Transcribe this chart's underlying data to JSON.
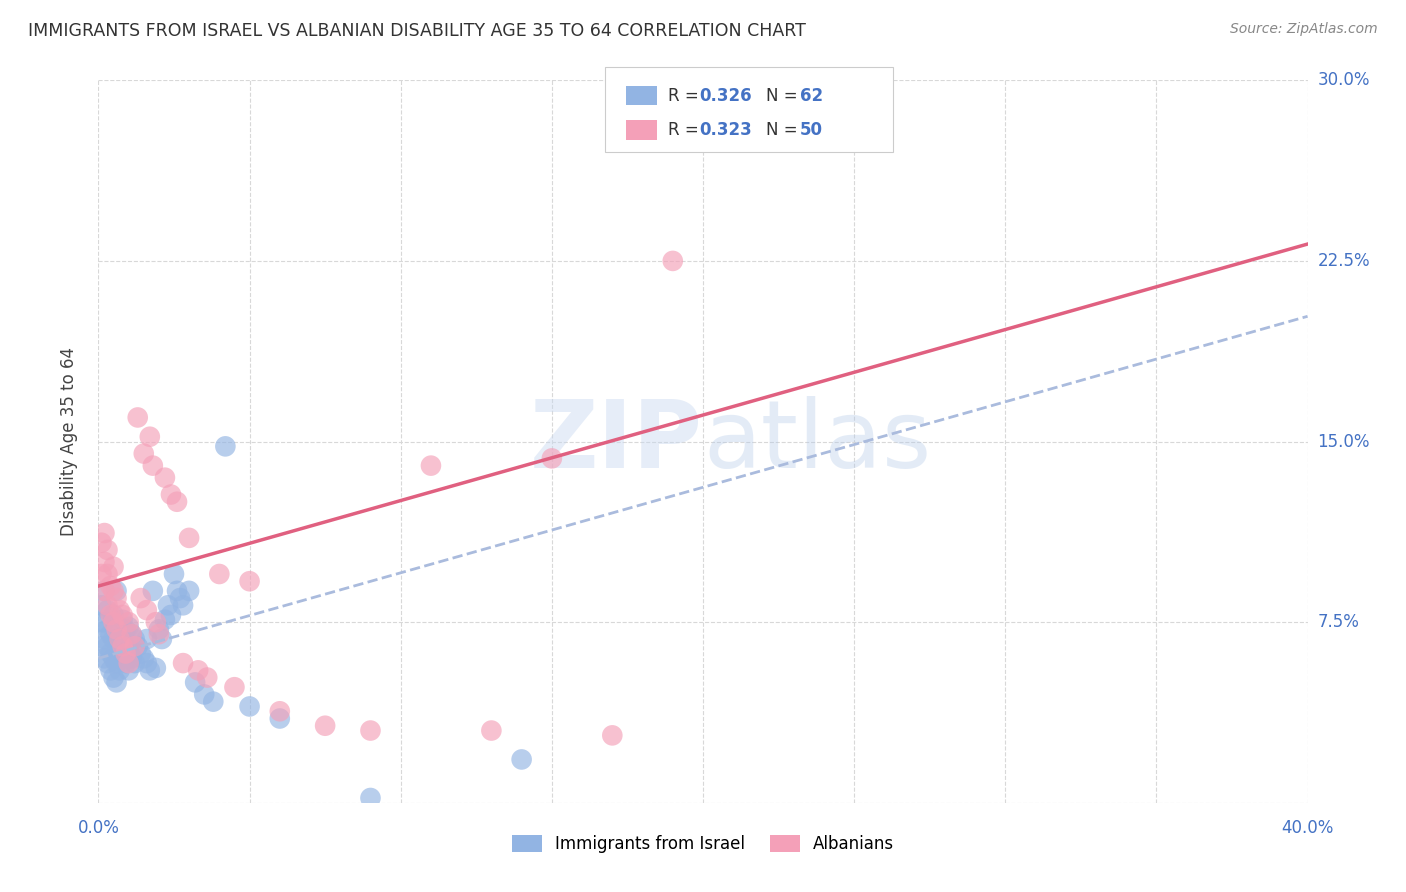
{
  "title": "IMMIGRANTS FROM ISRAEL VS ALBANIAN DISABILITY AGE 35 TO 64 CORRELATION CHART",
  "source": "Source: ZipAtlas.com",
  "ylabel": "Disability Age 35 to 64",
  "xlim": [
    0.0,
    0.4
  ],
  "ylim": [
    0.0,
    0.3
  ],
  "xticks": [
    0.0,
    0.05,
    0.1,
    0.15,
    0.2,
    0.25,
    0.3,
    0.35,
    0.4
  ],
  "yticks": [
    0.0,
    0.075,
    0.15,
    0.225,
    0.3
  ],
  "color_israel": "#92b4e3",
  "color_albanian": "#f4a0b8",
  "line_israel_color": "#aabbdd",
  "line_albanian_color": "#e06080",
  "legend_r1": "0.326",
  "legend_n1": "62",
  "legend_r2": "0.323",
  "legend_n2": "50",
  "watermark": "ZIPatlas",
  "israel_x": [
    0.001,
    0.001,
    0.001,
    0.002,
    0.002,
    0.002,
    0.002,
    0.003,
    0.003,
    0.003,
    0.003,
    0.004,
    0.004,
    0.004,
    0.005,
    0.005,
    0.005,
    0.005,
    0.006,
    0.006,
    0.006,
    0.007,
    0.007,
    0.007,
    0.008,
    0.008,
    0.008,
    0.009,
    0.009,
    0.01,
    0.01,
    0.01,
    0.011,
    0.011,
    0.012,
    0.012,
    0.013,
    0.014,
    0.015,
    0.016,
    0.016,
    0.017,
    0.018,
    0.019,
    0.02,
    0.021,
    0.022,
    0.023,
    0.024,
    0.025,
    0.026,
    0.027,
    0.028,
    0.03,
    0.032,
    0.035,
    0.038,
    0.042,
    0.05,
    0.06,
    0.09,
    0.14
  ],
  "israel_y": [
    0.065,
    0.075,
    0.082,
    0.06,
    0.068,
    0.075,
    0.088,
    0.058,
    0.065,
    0.072,
    0.08,
    0.055,
    0.062,
    0.07,
    0.052,
    0.06,
    0.068,
    0.078,
    0.05,
    0.058,
    0.088,
    0.055,
    0.065,
    0.073,
    0.06,
    0.068,
    0.076,
    0.058,
    0.072,
    0.055,
    0.064,
    0.073,
    0.06,
    0.07,
    0.058,
    0.068,
    0.065,
    0.062,
    0.06,
    0.058,
    0.068,
    0.055,
    0.088,
    0.056,
    0.072,
    0.068,
    0.076,
    0.082,
    0.078,
    0.095,
    0.088,
    0.085,
    0.082,
    0.088,
    0.05,
    0.045,
    0.042,
    0.148,
    0.04,
    0.035,
    0.002,
    0.018
  ],
  "albanian_x": [
    0.001,
    0.001,
    0.002,
    0.002,
    0.002,
    0.003,
    0.003,
    0.003,
    0.004,
    0.004,
    0.005,
    0.005,
    0.005,
    0.006,
    0.006,
    0.007,
    0.007,
    0.008,
    0.008,
    0.009,
    0.01,
    0.01,
    0.011,
    0.012,
    0.013,
    0.014,
    0.015,
    0.016,
    0.017,
    0.018,
    0.019,
    0.02,
    0.022,
    0.024,
    0.026,
    0.028,
    0.03,
    0.033,
    0.036,
    0.04,
    0.045,
    0.05,
    0.06,
    0.075,
    0.09,
    0.11,
    0.13,
    0.15,
    0.17,
    0.19
  ],
  "albanian_y": [
    0.095,
    0.108,
    0.088,
    0.1,
    0.112,
    0.082,
    0.095,
    0.105,
    0.078,
    0.09,
    0.075,
    0.088,
    0.098,
    0.072,
    0.085,
    0.068,
    0.08,
    0.065,
    0.078,
    0.062,
    0.058,
    0.075,
    0.07,
    0.065,
    0.16,
    0.085,
    0.145,
    0.08,
    0.152,
    0.14,
    0.075,
    0.07,
    0.135,
    0.128,
    0.125,
    0.058,
    0.11,
    0.055,
    0.052,
    0.095,
    0.048,
    0.092,
    0.038,
    0.032,
    0.03,
    0.14,
    0.03,
    0.143,
    0.028,
    0.225
  ],
  "israel_slope": 0.355,
  "israel_intercept": 0.06,
  "albanian_slope": 0.355,
  "albanian_intercept": 0.09,
  "background_color": "#ffffff",
  "grid_color": "#d8d8d8"
}
